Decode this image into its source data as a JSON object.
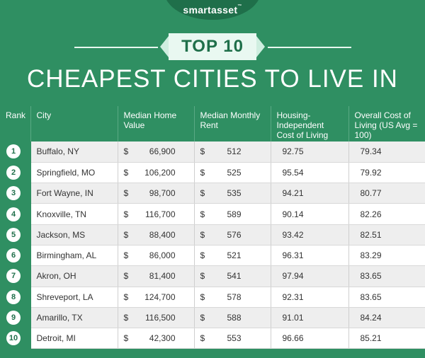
{
  "header": {
    "logo": "smartasset",
    "logo_tm": "™",
    "badge": "TOP 10",
    "title": "CHEAPEST CITIES TO LIVE IN"
  },
  "colors": {
    "brand_green": "#2f8f62",
    "dark_green": "#1f6f4a",
    "ribbon": "#e9f8f1"
  },
  "chart_data": {
    "type": "table",
    "title": "CHEAPEST CITIES TO LIVE IN",
    "columns": [
      "Rank",
      "City",
      "Median Home Value",
      "Median Monthly Rent",
      "Housing-Independent Cost of Living",
      "Overall Cost of Living (US Avg = 100)"
    ],
    "rows": [
      {
        "rank": "1",
        "city": "Buffalo, NY",
        "home_value": "66,900",
        "rent": "512",
        "hicol": "92.75",
        "col": "79.34"
      },
      {
        "rank": "2",
        "city": "Springfield, MO",
        "home_value": "106,200",
        "rent": "525",
        "hicol": "95.54",
        "col": "79.92"
      },
      {
        "rank": "3",
        "city": "Fort Wayne, IN",
        "home_value": "98,700",
        "rent": "535",
        "hicol": "94.21",
        "col": "80.77"
      },
      {
        "rank": "4",
        "city": "Knoxville, TN",
        "home_value": "116,700",
        "rent": "589",
        "hicol": "90.14",
        "col": "82.26"
      },
      {
        "rank": "5",
        "city": "Jackson, MS",
        "home_value": "88,400",
        "rent": "576",
        "hicol": "93.42",
        "col": "82.51"
      },
      {
        "rank": "6",
        "city": "Birmingham, AL",
        "home_value": "86,000",
        "rent": "521",
        "hicol": "96.31",
        "col": "83.29"
      },
      {
        "rank": "7",
        "city": "Akron, OH",
        "home_value": "81,400",
        "rent": "541",
        "hicol": "97.94",
        "col": "83.65"
      },
      {
        "rank": "8",
        "city": "Shreveport, LA",
        "home_value": "124,700",
        "rent": "578",
        "hicol": "92.31",
        "col": "83.65"
      },
      {
        "rank": "9",
        "city": "Amarillo, TX",
        "home_value": "116,500",
        "rent": "588",
        "hicol": "91.01",
        "col": "84.24"
      },
      {
        "rank": "10",
        "city": "Detroit, MI",
        "home_value": "42,300",
        "rent": "553",
        "hicol": "96.66",
        "col": "85.21"
      }
    ],
    "currency": "$"
  }
}
